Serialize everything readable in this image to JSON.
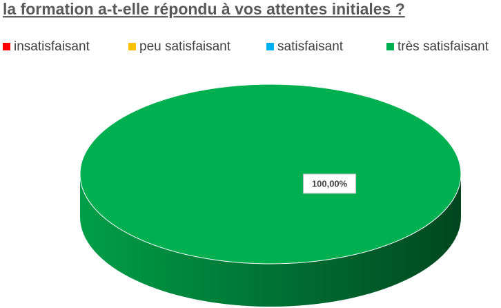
{
  "chart_data": {
    "type": "pie",
    "title": "la formation a-t-elle répondu à vos attentes initiales ?",
    "series": [
      {
        "name": "insatisfaisant",
        "color": "#ff0000",
        "values": [
          0
        ]
      },
      {
        "name": "peu satisfaisant",
        "color": "#ffc000",
        "values": [
          0
        ]
      },
      {
        "name": "satisfaisant",
        "color": "#00b0f0",
        "values": [
          0
        ]
      },
      {
        "name": "très satisfaisant",
        "color": "#00b050",
        "values": [
          100
        ],
        "value_labels": [
          "100,00%"
        ]
      }
    ],
    "legend": "top"
  }
}
